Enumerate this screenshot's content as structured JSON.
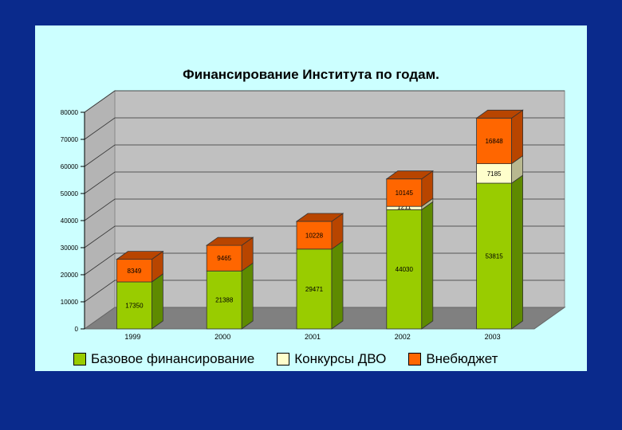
{
  "colors": {
    "background": "#0a2a8c",
    "panel": "#ccffff",
    "wall": "#c0c0c0",
    "floor": "#808080",
    "green": "#99cc00",
    "green_side": "#5e8a00",
    "yellow": "#ffffcc",
    "yellow_side": "#b8b890",
    "orange": "#ff6600",
    "orange_side": "#b84500"
  },
  "chart_data": {
    "type": "bar",
    "stacked": true,
    "three_d": true,
    "title": "Финансирование  Института  по годам.",
    "categories": [
      "1999",
      "2000",
      "2001",
      "2002",
      "2003"
    ],
    "ylim": [
      0,
      80000
    ],
    "yticks": [
      "0",
      "10000",
      "20000",
      "30000",
      "40000",
      "50000",
      "60000",
      "70000",
      "80000"
    ],
    "series": [
      {
        "name": "Базовое финансирование",
        "color": "#99cc00",
        "values": [
          17350,
          21388,
          29471,
          44030,
          53815
        ],
        "labels": [
          "17350",
          "21388",
          "29471",
          "44030",
          "53815"
        ]
      },
      {
        "name": "Конкурсы ДВО",
        "color": "#ffffcc",
        "values": [
          0,
          0,
          0,
          1211,
          7185
        ],
        "labels": [
          "",
          "",
          "",
          "1211",
          "7185"
        ]
      },
      {
        "name": "Внебюджет",
        "color": "#ff6600",
        "values": [
          8349,
          9465,
          10228,
          10145,
          16848
        ],
        "labels": [
          "8349",
          "9465",
          "10228",
          "10145",
          "16848"
        ]
      }
    ],
    "legend_position": "bottom",
    "grid": true
  }
}
